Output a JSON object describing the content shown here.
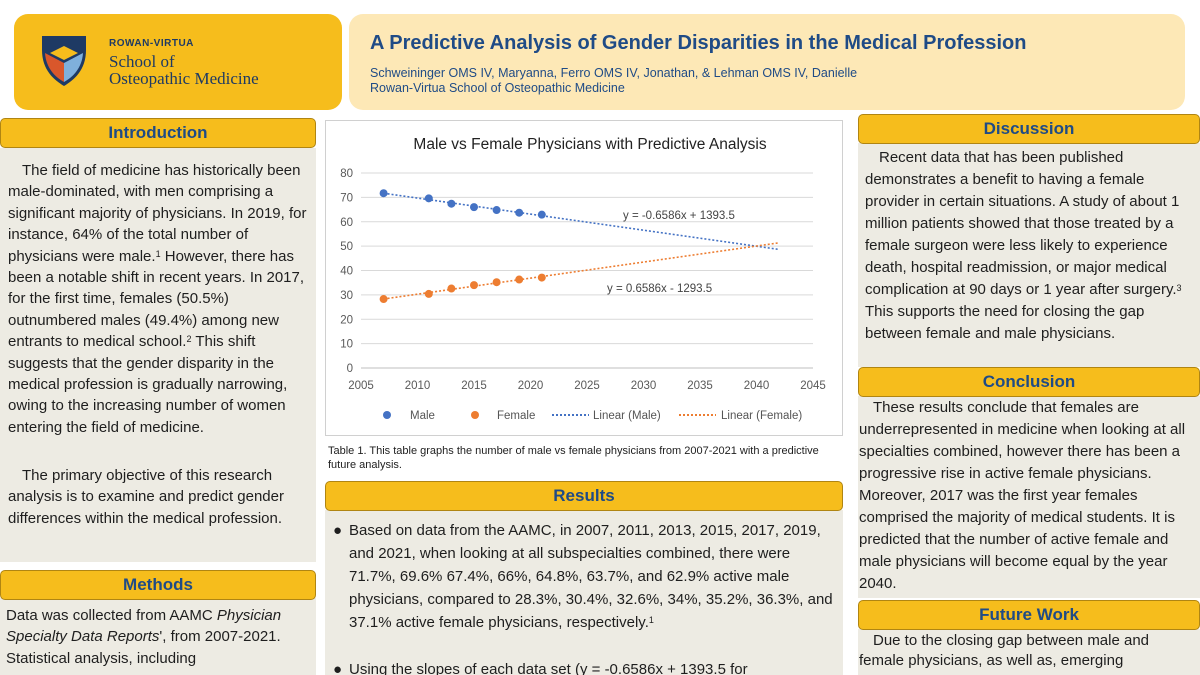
{
  "header": {
    "logo": {
      "line1": "ROWAN-VIRTUA",
      "line2": "School of",
      "line3": "Osteopathic Medicine"
    },
    "title": "A Predictive Analysis of Gender Disparities in the Medical Profession",
    "authors": "Schweininger OMS IV, Maryanna, Ferro OMS IV, Jonathan, & Lehman OMS IV, Danielle",
    "affiliation": "Rowan-Virtua School of Osteopathic Medicine"
  },
  "introduction": {
    "heading": "Introduction",
    "p1_a": "The field of medicine has historically been male-dominated, with men comprising a significant majority of physicians. In 2019, for instance, 64% of the total number of physicians were male.",
    "ref1": "1",
    "p1_b": " However, there has been a notable shift in recent years. In 2017, for the first time, females (50.5%) outnumbered males (49.4%) among new entrants to medical school.",
    "ref2": "2",
    "p1_c": " This shift suggests that the gender disparity in the medical profession is gradually narrowing, owing to the increasing number of women entering the field of medicine.",
    "p2": "The primary objective of this research analysis is to examine and predict gender differences within the medical profession."
  },
  "methods": {
    "heading": "Methods",
    "t1": "Data was collected from AAMC ",
    "t2": "Physician Specialty Data Reports",
    "t3": "', from 2007-2021. Statistical analysis, including"
  },
  "chart_data": {
    "type": "scatter",
    "title": "Male vs Female Physicians with Predictive Analysis",
    "xlim": [
      2005,
      2045
    ],
    "ylim": [
      0,
      80
    ],
    "xticks": [
      "2005",
      "2010",
      "2015",
      "2020",
      "2025",
      "2030",
      "2035",
      "2040",
      "2045"
    ],
    "yticks": [
      "0",
      "10",
      "20",
      "30",
      "40",
      "50",
      "60",
      "70",
      "80"
    ],
    "series": [
      {
        "name": "Male",
        "color": "#4472c4",
        "x": [
          2007,
          2011,
          2013,
          2015,
          2017,
          2019,
          2021
        ],
        "y": [
          71.7,
          69.6,
          67.4,
          66,
          64.8,
          63.7,
          62.9
        ]
      },
      {
        "name": "Female",
        "color": "#ed7d31",
        "x": [
          2007,
          2011,
          2013,
          2015,
          2017,
          2019,
          2021
        ],
        "y": [
          28.3,
          30.4,
          32.6,
          34,
          35.2,
          36.3,
          37.1
        ]
      }
    ],
    "trendlines": [
      {
        "name": "Linear (Male)",
        "color": "#4472c4",
        "slope": -0.6586,
        "intercept": 1393.5,
        "x": [
          2007,
          2042
        ],
        "label": "y = -0.6586x + 1393.5"
      },
      {
        "name": "Linear (Female)",
        "color": "#ed7d31",
        "slope": 0.6586,
        "intercept": -1293.5,
        "x": [
          2007,
          2042
        ],
        "label": "y = 0.6586x - 1293.5"
      }
    ],
    "legend": [
      "Male",
      "Female",
      "Linear (Male)",
      "Linear (Female)"
    ],
    "legend_position": "bottom",
    "grid": true
  },
  "caption": "Table 1. This table graphs the number of male vs female physicians from 2007-2021 with a predictive future analysis.",
  "results": {
    "heading": "Results",
    "b1": "Based on data from the AAMC, in 2007, 2011, 2013, 2015, 2017, 2019, and 2021, when looking at all subspecialties combined, there were 71.7%, 69.6% 67.4%, 66%, 64.8%, 63.7%, and 62.9% active male physicians, compared to 28.3%, 30.4%, 32.6%, 34%, 35.2%, 36.3%, and 37.1% active female physicians, respectively.",
    "b1_ref": "1",
    "b2": "Using the slopes of each data set (y = -0.6586x + 1393.5 for",
    "bullet": "●"
  },
  "discussion": {
    "heading": "Discussion",
    "a": "Recent data that has been published demonstrates a benefit to having a female provider in certain situations. A study of about 1 million patients showed that those treated by a female surgeon were less likely to experience death, hospital readmission, or major medical complication at 90 days or 1 year after surgery.",
    "ref": "3",
    "b": " This supports the need for closing the gap between female and male physicians."
  },
  "conclusion": {
    "heading": "Conclusion",
    "text": "These results conclude that females are underrepresented in medicine when looking at all specialties combined, however there has been a progressive rise in active female physicians. Moreover, 2017 was the first year females comprised the majority of medical students. It is predicted that the number of active female and male physicians will become equal by the year 2040."
  },
  "future_work": {
    "heading": "Future Work",
    "text": "Due to the closing gap between male and female physicians, as well as, emerging"
  }
}
